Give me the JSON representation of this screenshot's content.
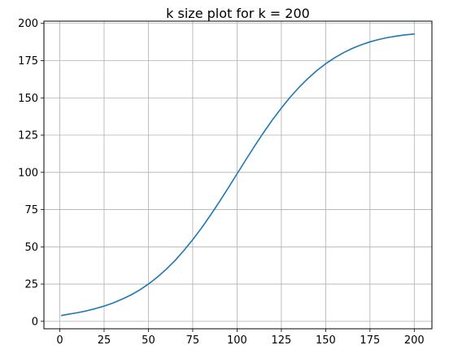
{
  "chart_data": {
    "type": "line",
    "title": "k size plot for k = 200",
    "xlabel": "",
    "ylabel": "",
    "xlim": [
      -8.95,
      209.95
    ],
    "ylim": [
      -5.0,
      201.5
    ],
    "grid": true,
    "xticks": [
      0,
      25,
      50,
      75,
      100,
      125,
      150,
      175,
      200
    ],
    "yticks": [
      0,
      25,
      50,
      75,
      100,
      125,
      150,
      175,
      200
    ],
    "series": [
      {
        "color": "#1f77b4",
        "x": [
          1,
          5,
          10,
          15,
          20,
          25,
          30,
          35,
          40,
          45,
          50,
          55,
          60,
          65,
          70,
          75,
          80,
          85,
          90,
          95,
          100,
          105,
          110,
          115,
          120,
          125,
          130,
          135,
          140,
          145,
          150,
          155,
          160,
          165,
          170,
          175,
          180,
          185,
          190,
          195,
          200
        ],
        "y": [
          3.9,
          4.8,
          5.8,
          7.0,
          8.5,
          10.2,
          12.3,
          14.8,
          17.6,
          21.0,
          25.0,
          29.6,
          34.9,
          40.8,
          47.5,
          54.8,
          62.7,
          71.2,
          80.2,
          89.5,
          99.0,
          108.5,
          117.8,
          126.8,
          135.3,
          143.2,
          150.5,
          157.1,
          163.0,
          168.3,
          172.9,
          176.9,
          180.3,
          183.2,
          185.6,
          187.6,
          189.2,
          190.5,
          191.5,
          192.3,
          192.9
        ]
      }
    ]
  }
}
